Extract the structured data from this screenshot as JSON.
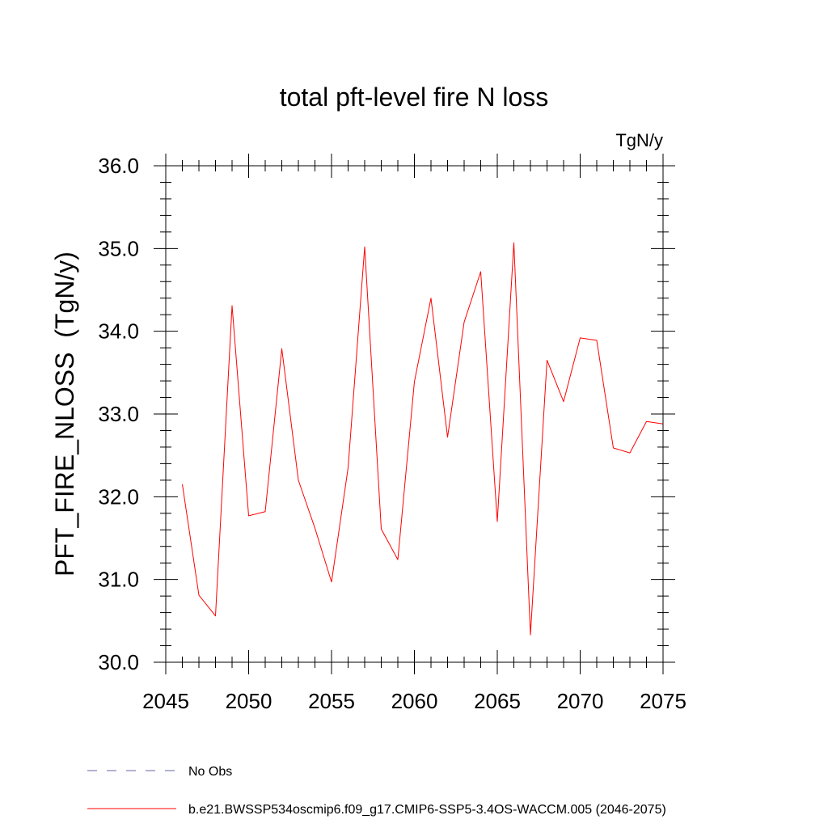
{
  "chart_data": {
    "type": "line",
    "title": "total pft-level fire N loss",
    "units": "TgN/y",
    "ylabel": "PFT_FIRE_NLOSS  (TgN/y)",
    "xlabel": "",
    "xlim": [
      2045,
      2075
    ],
    "ylim": [
      30.0,
      36.0
    ],
    "x_ticks": [
      "2045",
      "2050",
      "2055",
      "2060",
      "2065",
      "2070",
      "2075"
    ],
    "y_ticks": [
      "30.0",
      "31.0",
      "32.0",
      "33.0",
      "34.0",
      "35.0",
      "36.0"
    ],
    "grid": false,
    "legend_position": "bottom",
    "colors": {
      "series": "#ff0000",
      "obs": "#6666aa"
    },
    "legend": [
      {
        "label": "No Obs",
        "style": "dashed",
        "color": "#6666aa"
      },
      {
        "label": "b.e21.BWSSP534oscmip6.f09_g17.CMIP6-SSP5-3.4OS-WACCM.005 (2046-2075)",
        "style": "solid",
        "color": "#ff0000"
      }
    ],
    "series": [
      {
        "name": "b.e21.BWSSP534oscmip6.f09_g17.CMIP6-SSP5-3.4OS-WACCM.005 (2046-2075)",
        "x": [
          2046,
          2047,
          2048,
          2049,
          2050,
          2051,
          2052,
          2053,
          2054,
          2055,
          2056,
          2057,
          2058,
          2059,
          2060,
          2061,
          2062,
          2063,
          2064,
          2065,
          2066,
          2067,
          2068,
          2069,
          2070,
          2071,
          2072,
          2073,
          2074,
          2075
        ],
        "y": [
          32.15,
          30.81,
          30.56,
          34.31,
          31.77,
          31.82,
          33.79,
          32.2,
          31.62,
          30.97,
          32.35,
          35.02,
          31.61,
          31.24,
          33.39,
          34.4,
          32.72,
          34.11,
          34.72,
          31.7,
          35.07,
          30.33,
          33.65,
          33.15,
          33.92,
          33.89,
          32.59,
          32.53,
          32.91,
          32.88
        ]
      }
    ]
  }
}
